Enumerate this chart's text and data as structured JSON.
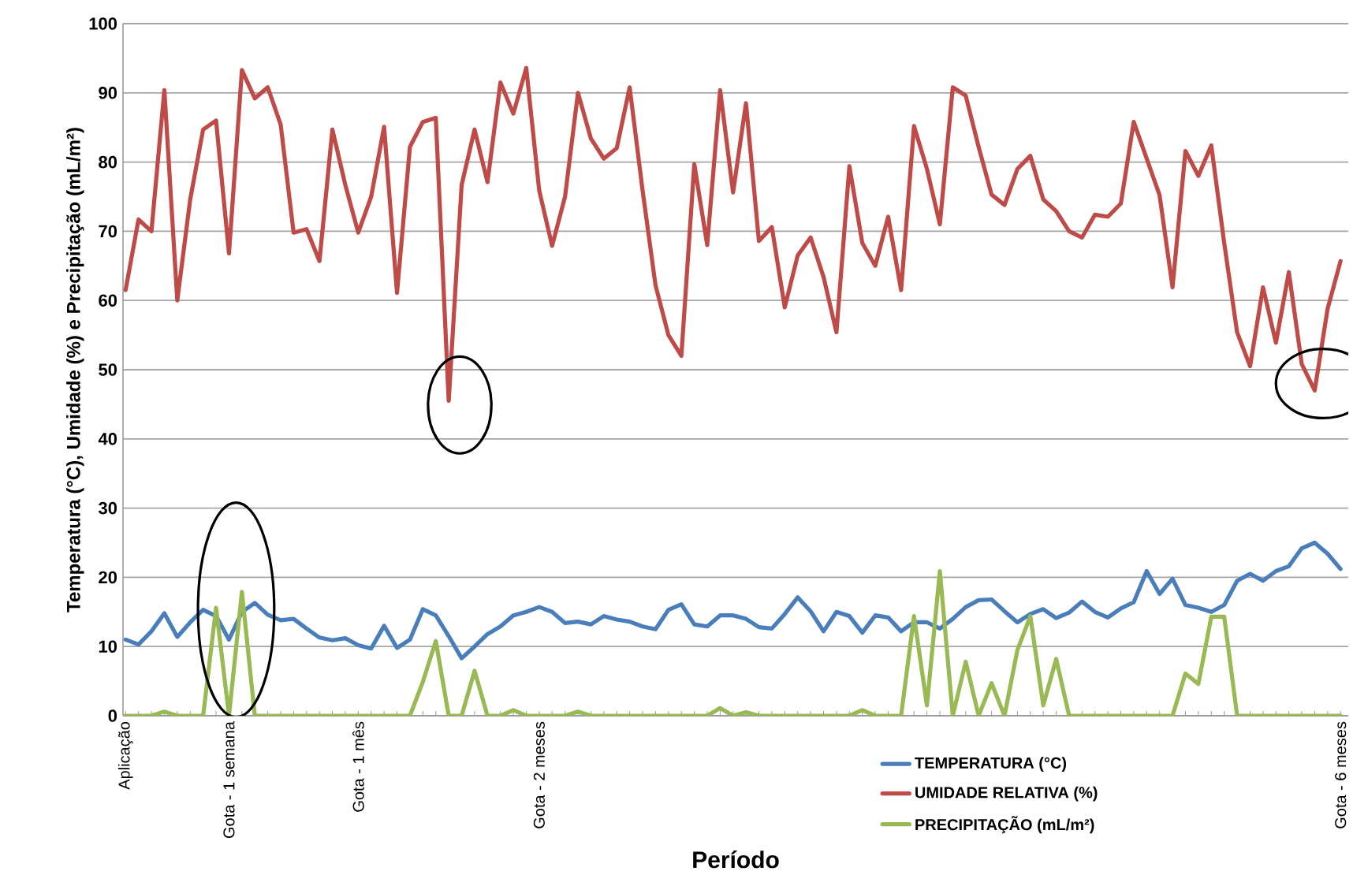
{
  "chart_data": {
    "type": "line",
    "xlabel": "Período",
    "ylabel": "Temperatura (°C), Umidade (%) e Precipitação (mL/m²)",
    "categories": [
      "Aplicação",
      null,
      null,
      null,
      null,
      null,
      null,
      null,
      "Gota - 1 semana",
      null,
      null,
      null,
      null,
      null,
      null,
      null,
      null,
      null,
      "Gota - 1 mês",
      null,
      null,
      null,
      null,
      null,
      null,
      null,
      null,
      null,
      null,
      null,
      null,
      null,
      "Gota - 2 meses",
      null,
      null,
      null,
      null,
      null,
      null,
      null,
      null,
      null,
      null,
      null,
      null,
      null,
      null,
      null,
      null,
      null,
      null,
      null,
      null,
      null,
      null,
      null,
      null,
      null,
      null,
      null,
      null,
      null,
      null,
      null,
      null,
      null,
      null,
      null,
      null,
      null,
      null,
      null,
      null,
      null,
      null,
      null,
      null,
      null,
      null,
      null,
      null,
      null,
      null,
      null,
      null,
      null,
      null,
      null,
      null,
      null,
      null,
      null,
      null,
      null,
      "Gota - 6 meses"
    ],
    "ylim": [
      0,
      100
    ],
    "yticks": [
      0,
      10,
      20,
      30,
      40,
      50,
      60,
      70,
      80,
      90,
      100
    ],
    "grid": "y",
    "legend": "bottom right",
    "marker": "none",
    "line_style": "solid",
    "series": [
      {
        "name": "TEMPERATURA (°C)",
        "color": "#4a7ebb",
        "values": [
          11,
          10.3,
          12.2,
          14.8,
          11.4,
          13.5,
          15.3,
          14.4,
          11,
          15,
          16.3,
          14.6,
          13.8,
          14,
          12.6,
          11.3,
          10.9,
          11.2,
          10.2,
          9.7,
          13,
          9.8,
          11,
          15.4,
          14.5,
          11.5,
          8.3,
          10,
          11.8,
          12.9,
          14.5,
          15,
          15.7,
          15,
          13.4,
          13.6,
          13.2,
          14.4,
          13.9,
          13.6,
          12.9,
          12.5,
          15.3,
          16.1,
          13.2,
          12.9,
          14.5,
          14.5,
          14,
          12.8,
          12.6,
          14.7,
          17.1,
          15.1,
          12.2,
          15,
          14.4,
          12,
          14.5,
          14.2,
          12.2,
          13.5,
          13.5,
          12.6,
          14,
          15.7,
          16.7,
          16.8,
          15.1,
          13.5,
          14.7,
          15.4,
          14.1,
          14.9,
          16.5,
          15,
          14.2,
          15.5,
          16.4,
          20.9,
          17.6,
          19.8,
          16,
          15.6,
          15,
          16,
          19.5,
          20.5,
          19.5,
          20.9,
          21.6,
          24.2,
          25,
          23.4,
          21.2
        ]
      },
      {
        "name": "UMIDADE RELATIVA (%)",
        "color": "#be4b48",
        "values": [
          61.5,
          71.7,
          70,
          90.4,
          60,
          74.6,
          84.7,
          86,
          66.8,
          93.3,
          89.2,
          90.8,
          85.4,
          69.8,
          70.3,
          65.7,
          84.7,
          76.7,
          69.8,
          75,
          85.1,
          61.1,
          82.2,
          85.8,
          86.4,
          45.5,
          76.7,
          84.7,
          77.1,
          91.5,
          87,
          93.6,
          75.9,
          67.9,
          75,
          90,
          83.4,
          80.5,
          82,
          90.8,
          75.9,
          62.2,
          55,
          52,
          79.7,
          68,
          90.4,
          75.6,
          88.5,
          68.6,
          70.6,
          59,
          66.5,
          69.1,
          63.4,
          55.4,
          79.4,
          68.3,
          65,
          72.1,
          61.5,
          85.2,
          79,
          71,
          90.8,
          89.6,
          82.2,
          75.3,
          73.8,
          79,
          80.9,
          74.6,
          72.9,
          70,
          69.1,
          72.4,
          72.1,
          74,
          85.8,
          80.5,
          75.2,
          61.9,
          81.6,
          78,
          82.4,
          68.3,
          55.4,
          50.5,
          61.9,
          53.9,
          64.1,
          50.8,
          47,
          58.8,
          65.7
        ]
      },
      {
        "name": "PRECIPITAÇÃO (mL/m²)",
        "color": "#98b954",
        "values": [
          0,
          0,
          0,
          0.6,
          0,
          0,
          0,
          15.6,
          0,
          17.9,
          0,
          0,
          0,
          0,
          0,
          0,
          0,
          0,
          0,
          0,
          0,
          0,
          0,
          4.9,
          10.8,
          0,
          0,
          6.5,
          0,
          0,
          0.8,
          0,
          0,
          0,
          0,
          0.6,
          0,
          0,
          0,
          0,
          0,
          0,
          0,
          0,
          0,
          0,
          1.1,
          0,
          0.5,
          0,
          0,
          0,
          0,
          0,
          0,
          0,
          0,
          0.8,
          0,
          0,
          0,
          14.4,
          1.5,
          20.9,
          0,
          7.8,
          0,
          4.7,
          0,
          9.5,
          14.4,
          1.5,
          8.2,
          0,
          0,
          0,
          0,
          0,
          0,
          0,
          0,
          0,
          6.1,
          4.6,
          14.3,
          14.3,
          0,
          0,
          0,
          0,
          0,
          0,
          0,
          0,
          0
        ]
      }
    ]
  }
}
